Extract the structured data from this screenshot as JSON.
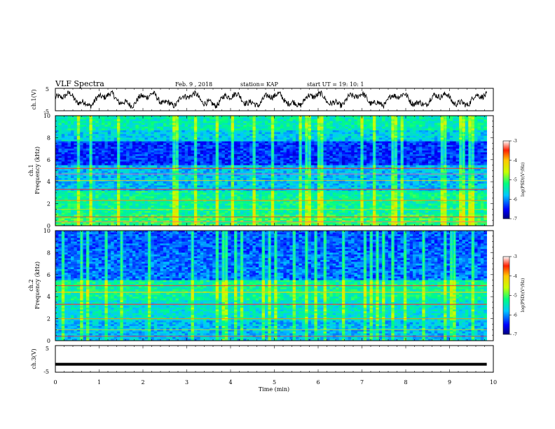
{
  "header": {
    "title": "VLF Spectra",
    "date": "Feb. 9 , 2018",
    "station": "station= KAP",
    "start": "start UT = 19: 10: 1"
  },
  "chart_data": [
    {
      "type": "line",
      "name": "ch1-waveform",
      "ylabel": "ch.1(V)",
      "ylim": [
        -5,
        5
      ],
      "yticks": [
        "5",
        "-5"
      ],
      "xlim": [
        0,
        10
      ],
      "color": "#000000"
    },
    {
      "type": "heatmap",
      "name": "ch1-spectrogram",
      "ylabel": "Frequency (kHz)",
      "ylabel_prefix": "ch.1",
      "ylim": [
        0,
        10
      ],
      "yticks": [
        "0",
        "2",
        "4",
        "6",
        "8",
        "10"
      ],
      "xlim": [
        0,
        10
      ],
      "colorbar": {
        "label": "log(PSD)(V²/Hz)",
        "ticks": [
          "-3",
          "-4",
          "-5",
          "-6",
          "-7"
        ],
        "range": [
          -7,
          -3
        ]
      }
    },
    {
      "type": "heatmap",
      "name": "ch2-spectrogram",
      "ylabel": "Frequency (kHz)",
      "ylabel_prefix": "ch.2",
      "ylim": [
        0,
        10
      ],
      "yticks": [
        "0",
        "2",
        "4",
        "6",
        "8",
        "10"
      ],
      "xlim": [
        0,
        10
      ],
      "colorbar": {
        "label": "log(PSD)(V²/Hz)",
        "ticks": [
          "-3",
          "-4",
          "-5",
          "-6",
          "-7"
        ],
        "range": [
          -7,
          -3
        ]
      }
    },
    {
      "type": "line",
      "name": "ch3-waveform",
      "ylabel": "ch.3(V)",
      "ylim": [
        -5,
        5
      ],
      "yticks": [
        "5",
        "-5"
      ],
      "xlim": [
        0,
        10
      ],
      "xlabel": "Time (min)",
      "xticks": [
        "0",
        "1",
        "2",
        "3",
        "4",
        "5",
        "6",
        "7",
        "8",
        "9",
        "10"
      ],
      "constant_value": -2,
      "color": "#000000"
    }
  ]
}
